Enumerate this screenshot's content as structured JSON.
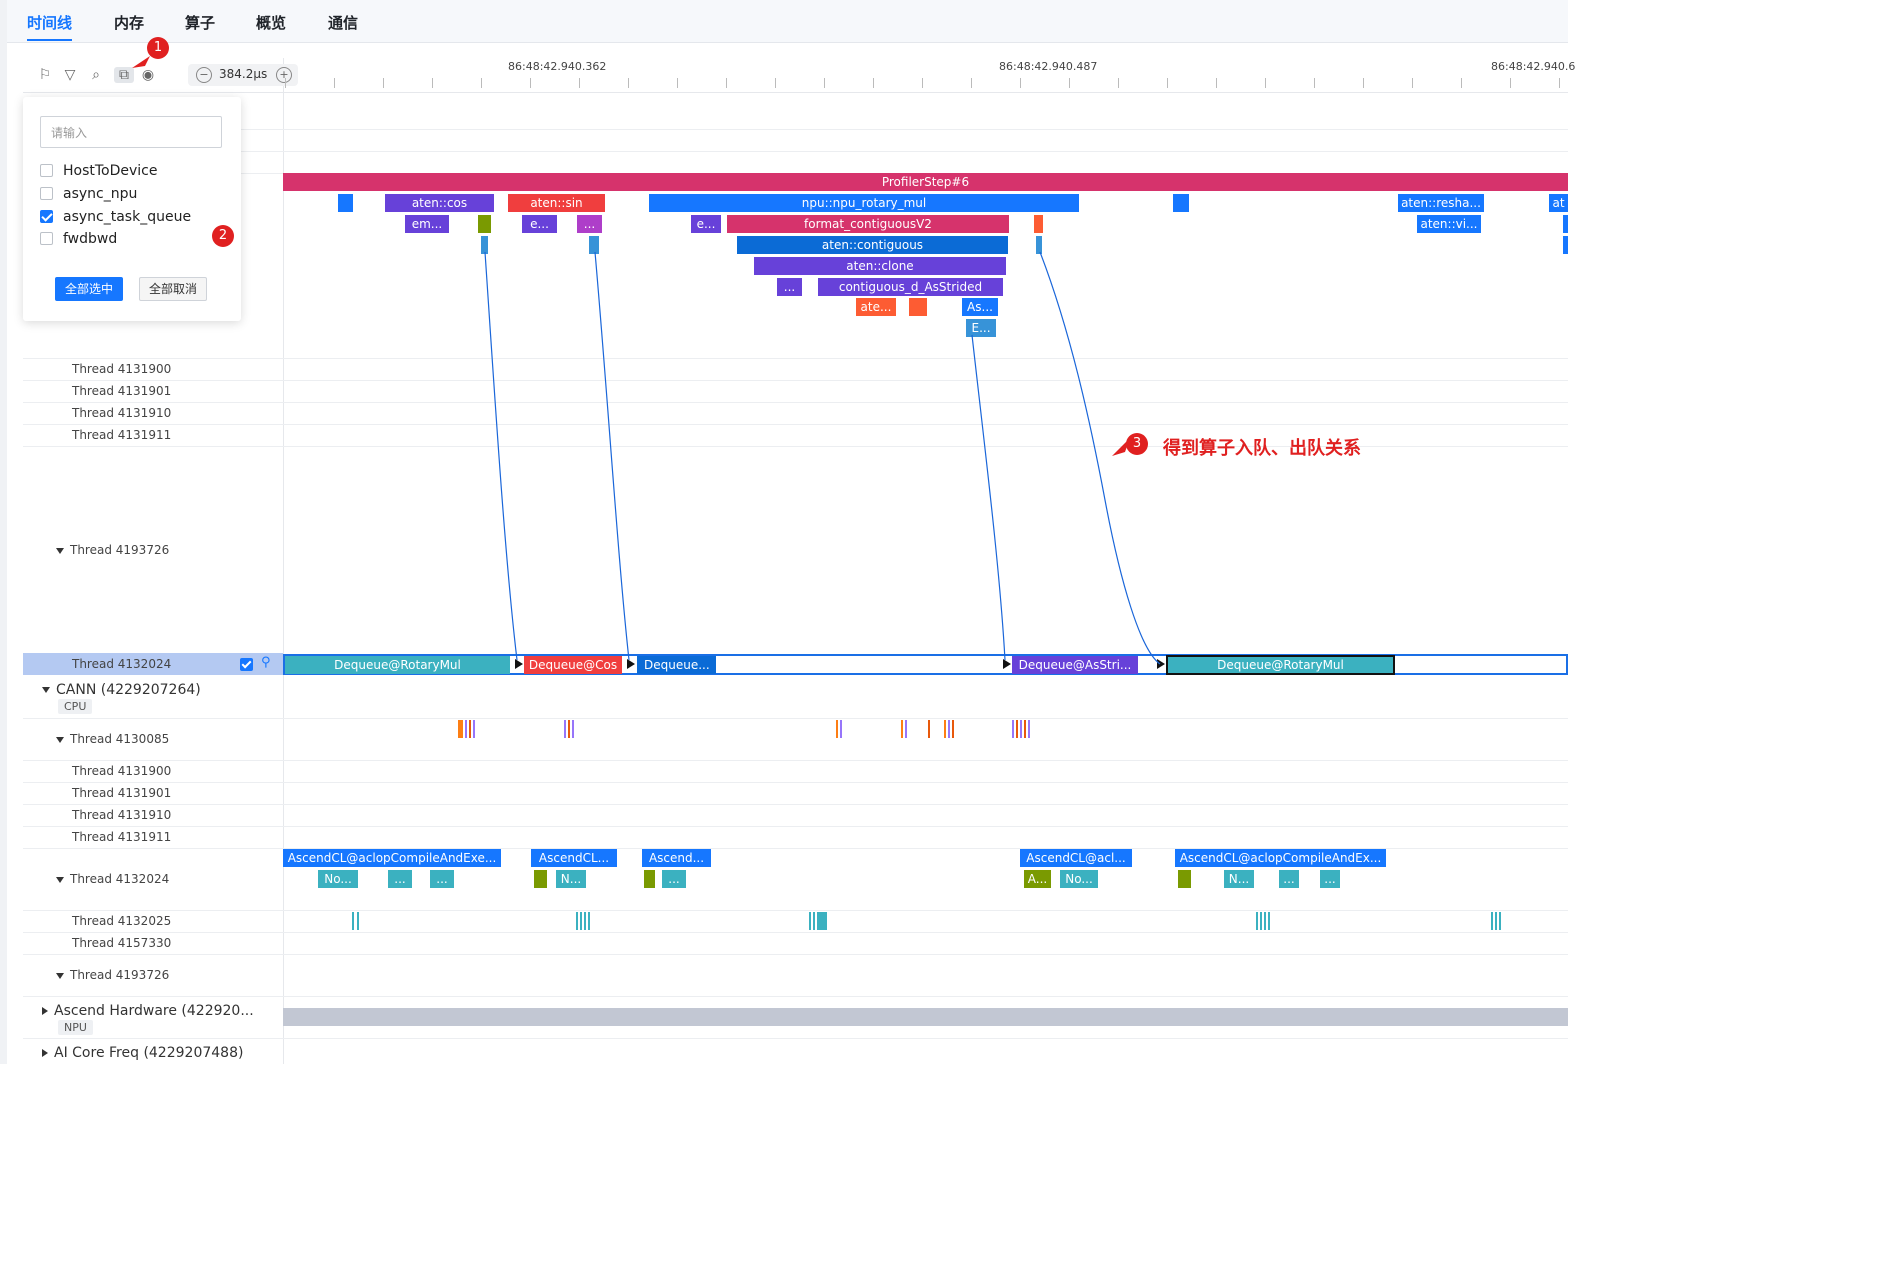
{
  "tabs": [
    "时间线",
    "内存",
    "算子",
    "概览",
    "通信"
  ],
  "toolbar": {
    "icons": [
      "flag-icon",
      "filter-icon",
      "search-icon",
      "flow-link-icon",
      "location-icon"
    ],
    "zoom_value": "384.2μs",
    "zoom_minus": "−",
    "zoom_plus": "+"
  },
  "ruler": {
    "labels": [
      "86:48:42.940.362",
      "86:48:42.940.487",
      "86:48:42.940.6"
    ]
  },
  "popup": {
    "search_placeholder": "请输入",
    "options": [
      {
        "label": "HostToDevice",
        "checked": false
      },
      {
        "label": "async_npu",
        "checked": false
      },
      {
        "label": "async_task_queue",
        "checked": true
      },
      {
        "label": "fwdbwd",
        "checked": false
      }
    ],
    "select_all": "全部选中",
    "deselect_all": "全部取消"
  },
  "annotations": {
    "marker1": "1",
    "marker2": "2",
    "marker3": "3",
    "note": "得到算子入队、出队关系"
  },
  "threads_top": [
    "Thread 4131900",
    "Thread 4131901",
    "Thread 4131910",
    "Thread 4131911"
  ],
  "thread_4193726": "Thread 4193726",
  "thread_selected": "Thread 4132024",
  "cann": {
    "name": "CANN (4229207264)",
    "badge": "CPU",
    "thread_4130085": "Thread 4130085",
    "threads": [
      "Thread 4131900",
      "Thread 4131901",
      "Thread 4131910",
      "Thread 4131911"
    ],
    "thread_4132024": "Thread 4132024",
    "thread_4132025": "Thread 4132025",
    "thread_4157330": "Thread 4157330",
    "thread_4193726": "Thread 4193726"
  },
  "ascend_hw": {
    "name": "Ascend Hardware (422920...",
    "badge": "NPU"
  },
  "ai_core": {
    "name": "AI Core Freq (4229207488)"
  },
  "blocks": {
    "profiler_step": "ProfilerStep#6",
    "aten_cos": "aten::cos",
    "aten_sin": "aten::sin",
    "npu_rotary": "npu::npu_rotary_mul",
    "aten_resha": "aten::resha...",
    "at": "at",
    "em": "em...",
    "e1": "e...",
    "e_dots": "...",
    "e2": "e...",
    "format_contig": "format_contiguousV2",
    "aten_vi": "aten::vi...",
    "aten_contiguous": "aten::contiguous",
    "aten_clone": "aten::clone",
    "dots": "...",
    "contig_as_strided": "contiguous_d_AsStrided",
    "ate": "ate...",
    "as": "As...",
    "e_small": "E...",
    "deq_rotary": "Dequeue@RotaryMul",
    "deq_cos": "Dequeue@Cos",
    "deq_dots": "Dequeue...",
    "deq_asstri": "Dequeue@AsStri...",
    "deq_rotary2": "Dequeue@RotaryMul",
    "acl1": "AscendCL@aclopCompileAndExe...",
    "acl2": "AscendCL...",
    "acl3": "Ascend...",
    "acl4": "AscendCL@acl...",
    "acl5": "AscendCL@aclopCompileAndEx...",
    "no1": "No...",
    "d1": "...",
    "d2": "...",
    "n1": "N...",
    "d3": "...",
    "a1": "A...",
    "no2": "No...",
    "n2": "N...",
    "d4": "...",
    "d5": "..."
  },
  "colors": {
    "accent": "#1677ff",
    "profiler": "#d6336c",
    "purple": "#6741d9",
    "blue": "#1677ff",
    "red": "#f03e3e",
    "teal": "#3bb1c0",
    "olive": "#7a9a01",
    "orange": "#fd5c33",
    "annotation": "#e02020"
  }
}
